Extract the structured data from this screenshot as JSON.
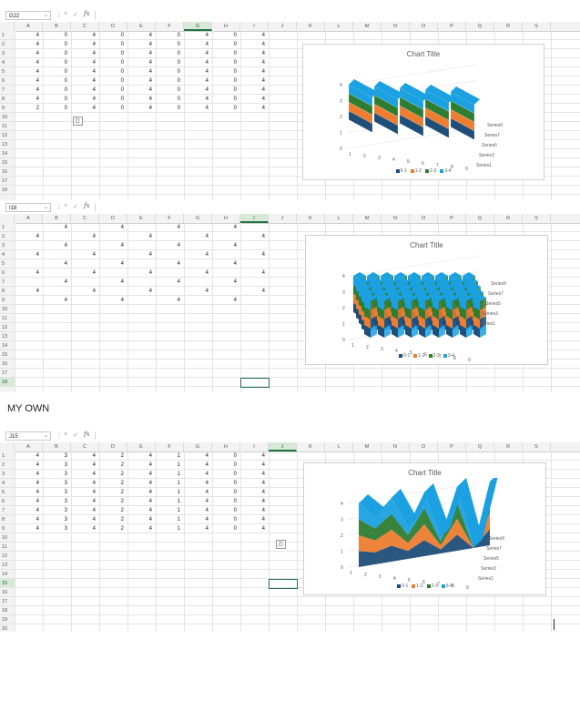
{
  "columns": [
    "A",
    "B",
    "C",
    "D",
    "E",
    "F",
    "G",
    "H",
    "I",
    "J",
    "K",
    "L",
    "M",
    "N",
    "O",
    "P",
    "Q",
    "R",
    "S"
  ],
  "fx_label": "fx",
  "cancel_glyph": "×",
  "confirm_glyph": "✓",
  "separator_glyph": "⋮",
  "dropdown_glyph": "⌄",
  "paste_icon_glyph": "📋",
  "colors": {
    "s01": "#1f4e79",
    "s12": "#ed7d31",
    "s23": "#2e7d32",
    "s34": "#1ba1e2",
    "accent": "#217346"
  },
  "legend": [
    "0-1",
    "1-2",
    "2-3",
    "3-4"
  ],
  "axis_z": [
    "0",
    "1",
    "2",
    "3",
    "4"
  ],
  "axis_x": [
    "1",
    "2",
    "3",
    "4",
    "5",
    "6",
    "7",
    "8",
    "9"
  ],
  "label_own": "MY OWN",
  "panels": [
    {
      "name_box": "G22",
      "selected_col": 6,
      "rows": [
        "1",
        "2",
        "3",
        "4",
        "5",
        "6",
        "7",
        "8",
        "9",
        "10",
        "11",
        "12",
        "13",
        "14",
        "15",
        "16",
        "17",
        "18"
      ],
      "selected_row": null,
      "data": [
        [
          "4",
          "0",
          "4",
          "0",
          "4",
          "0",
          "4",
          "0",
          "4"
        ],
        [
          "4",
          "0",
          "4",
          "0",
          "4",
          "0",
          "4",
          "0",
          "4"
        ],
        [
          "4",
          "0",
          "4",
          "0",
          "4",
          "0",
          "4",
          "0",
          "4"
        ],
        [
          "4",
          "0",
          "4",
          "0",
          "4",
          "0",
          "4",
          "0",
          "4"
        ],
        [
          "4",
          "0",
          "4",
          "0",
          "4",
          "0",
          "4",
          "0",
          "4"
        ],
        [
          "4",
          "0",
          "4",
          "0",
          "4",
          "0",
          "4",
          "0",
          "4"
        ],
        [
          "4",
          "0",
          "4",
          "0",
          "4",
          "0",
          "4",
          "0",
          "4"
        ],
        [
          "4",
          "0",
          "4",
          "0",
          "4",
          "0",
          "4",
          "0",
          "4"
        ],
        [
          "2",
          "0",
          "4",
          "0",
          "4",
          "0",
          "4",
          "0",
          "4"
        ]
      ],
      "chart": {
        "title": "Chart Title",
        "series_labels": [
          "Series9",
          "Series7",
          "Series5",
          "Series3",
          "Series1"
        ]
      }
    },
    {
      "name_box": "I18",
      "selected_col": 8,
      "rows": [
        "1",
        "2",
        "3",
        "4",
        "5",
        "6",
        "7",
        "8",
        "9",
        "10",
        "11",
        "12",
        "13",
        "14",
        "15",
        "16",
        "17",
        "18"
      ],
      "selected_row": 17,
      "data": [
        [
          "",
          "4",
          "",
          "4",
          "",
          "4",
          "",
          "4",
          ""
        ],
        [
          "4",
          "",
          "4",
          "",
          "4",
          "",
          "4",
          "",
          "4"
        ],
        [
          "",
          "4",
          "",
          "4",
          "",
          "4",
          "",
          "4",
          ""
        ],
        [
          "4",
          "",
          "4",
          "",
          "4",
          "",
          "4",
          "",
          "4"
        ],
        [
          "",
          "4",
          "",
          "4",
          "",
          "4",
          "",
          "4",
          ""
        ],
        [
          "4",
          "",
          "4",
          "",
          "4",
          "",
          "4",
          "",
          "4"
        ],
        [
          "",
          "4",
          "",
          "4",
          "",
          "4",
          "",
          "4",
          ""
        ],
        [
          "4",
          "",
          "4",
          "",
          "4",
          "",
          "4",
          "",
          "4"
        ],
        [
          "",
          "4",
          "",
          "4",
          "",
          "4",
          "",
          "4",
          ""
        ]
      ],
      "chart": {
        "title": "Chart Title",
        "series_labels": [
          "Series9",
          "Series7",
          "Series5",
          "Series3",
          "Series1"
        ]
      }
    },
    {
      "name_box": "J15",
      "selected_col": 9,
      "rows": [
        "1",
        "2",
        "3",
        "4",
        "5",
        "6",
        "7",
        "8",
        "9",
        "10",
        "11",
        "12",
        "13",
        "14",
        "15",
        "16",
        "17",
        "18",
        "19",
        "20"
      ],
      "selected_row": 14,
      "data": [
        [
          "4",
          "3",
          "4",
          "2",
          "4",
          "1",
          "4",
          "0",
          "4"
        ],
        [
          "4",
          "3",
          "4",
          "2",
          "4",
          "1",
          "4",
          "0",
          "4"
        ],
        [
          "4",
          "3",
          "4",
          "2",
          "4",
          "1",
          "4",
          "0",
          "4"
        ],
        [
          "4",
          "3",
          "4",
          "2",
          "4",
          "1",
          "4",
          "0",
          "4"
        ],
        [
          "4",
          "3",
          "4",
          "2",
          "4",
          "1",
          "4",
          "0",
          "4"
        ],
        [
          "4",
          "3",
          "4",
          "2",
          "4",
          "1",
          "4",
          "0",
          "4"
        ],
        [
          "4",
          "3",
          "4",
          "2",
          "4",
          "1",
          "4",
          "0",
          "4"
        ],
        [
          "4",
          "3",
          "4",
          "2",
          "4",
          "1",
          "4",
          "0",
          "4"
        ],
        [
          "4",
          "3",
          "4",
          "2",
          "4",
          "1",
          "4",
          "0",
          "4"
        ]
      ],
      "chart": {
        "title": "Chart Title",
        "series_labels": [
          "Series9",
          "Series7",
          "Series5",
          "Series3",
          "Series1"
        ]
      }
    }
  ]
}
